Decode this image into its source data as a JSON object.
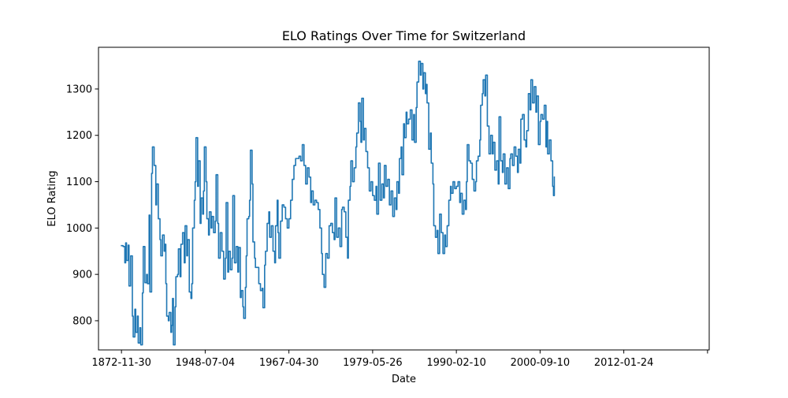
{
  "chart_data": {
    "type": "line",
    "title": "ELO Ratings Over Time for Switzerland",
    "xlabel": "Date",
    "ylabel": "ELO Rating",
    "x_tick_labels": [
      "1872-11-30",
      "1948-07-04",
      "1967-04-30",
      "1979-05-26",
      "1990-02-10",
      "2000-09-10",
      "2012-01-24",
      ""
    ],
    "y_ticks": [
      800,
      900,
      1000,
      1100,
      1200,
      1300
    ],
    "ylim": [
      737,
      1390
    ],
    "xlim": [
      -0.2744,
      7.02
    ],
    "x_encoding": "x values are the ordinal index of the matches; integers align with the printed tick labels",
    "grid": false,
    "legend": "none",
    "colors": {
      "series": "#1f77b4"
    },
    "series": [
      {
        "name": "",
        "points": [
          [
            0.0,
            962
          ],
          [
            0.02,
            960
          ],
          [
            0.04,
            925
          ],
          [
            0.05,
            968
          ],
          [
            0.06,
            930
          ],
          [
            0.08,
            963
          ],
          [
            0.09,
            875
          ],
          [
            0.11,
            940
          ],
          [
            0.13,
            810
          ],
          [
            0.14,
            765
          ],
          [
            0.16,
            825
          ],
          [
            0.17,
            775
          ],
          [
            0.19,
            810
          ],
          [
            0.2,
            752
          ],
          [
            0.22,
            785
          ],
          [
            0.23,
            748
          ],
          [
            0.25,
            860
          ],
          [
            0.26,
            960
          ],
          [
            0.28,
            882
          ],
          [
            0.3,
            900
          ],
          [
            0.31,
            880
          ],
          [
            0.33,
            1028
          ],
          [
            0.34,
            862
          ],
          [
            0.36,
            1118
          ],
          [
            0.37,
            1175
          ],
          [
            0.39,
            1135
          ],
          [
            0.41,
            1050
          ],
          [
            0.42,
            1095
          ],
          [
            0.44,
            1020
          ],
          [
            0.46,
            975
          ],
          [
            0.47,
            940
          ],
          [
            0.49,
            985
          ],
          [
            0.51,
            950
          ],
          [
            0.52,
            965
          ],
          [
            0.53,
            880
          ],
          [
            0.54,
            810
          ],
          [
            0.56,
            800
          ],
          [
            0.57,
            818
          ],
          [
            0.59,
            775
          ],
          [
            0.6,
            790
          ],
          [
            0.61,
            848
          ],
          [
            0.62,
            748
          ],
          [
            0.64,
            830
          ],
          [
            0.65,
            895
          ],
          [
            0.67,
            900
          ],
          [
            0.68,
            955
          ],
          [
            0.7,
            895
          ],
          [
            0.71,
            965
          ],
          [
            0.73,
            990
          ],
          [
            0.75,
            925
          ],
          [
            0.76,
            1005
          ],
          [
            0.78,
            940
          ],
          [
            0.79,
            975
          ],
          [
            0.81,
            862
          ],
          [
            0.83,
            848
          ],
          [
            0.84,
            880
          ],
          [
            0.85,
            1000
          ],
          [
            0.87,
            1060
          ],
          [
            0.88,
            1100
          ],
          [
            0.89,
            1195
          ],
          [
            0.91,
            1090
          ],
          [
            0.92,
            1145
          ],
          [
            0.94,
            1010
          ],
          [
            0.95,
            1065
          ],
          [
            0.97,
            1030
          ],
          [
            0.98,
            1080
          ],
          [
            0.99,
            1175
          ],
          [
            1.01,
            1100
          ],
          [
            1.02,
            1020
          ],
          [
            1.04,
            985
          ],
          [
            1.05,
            1035
          ],
          [
            1.07,
            1000
          ],
          [
            1.08,
            1025
          ],
          [
            1.1,
            990
          ],
          [
            1.12,
            1015
          ],
          [
            1.13,
            1115
          ],
          [
            1.15,
            1010
          ],
          [
            1.16,
            935
          ],
          [
            1.18,
            990
          ],
          [
            1.2,
            950
          ],
          [
            1.22,
            890
          ],
          [
            1.24,
            935
          ],
          [
            1.25,
            1055
          ],
          [
            1.27,
            905
          ],
          [
            1.28,
            950
          ],
          [
            1.3,
            910
          ],
          [
            1.32,
            935
          ],
          [
            1.33,
            1070
          ],
          [
            1.35,
            925
          ],
          [
            1.37,
            960
          ],
          [
            1.39,
            905
          ],
          [
            1.4,
            958
          ],
          [
            1.42,
            850
          ],
          [
            1.43,
            865
          ],
          [
            1.45,
            830
          ],
          [
            1.46,
            805
          ],
          [
            1.48,
            872
          ],
          [
            1.49,
            940
          ],
          [
            1.5,
            1020
          ],
          [
            1.52,
            1025
          ],
          [
            1.53,
            1060
          ],
          [
            1.54,
            1168
          ],
          [
            1.56,
            1095
          ],
          [
            1.57,
            970
          ],
          [
            1.59,
            935
          ],
          [
            1.6,
            915
          ],
          [
            1.62,
            915
          ],
          [
            1.64,
            880
          ],
          [
            1.66,
            865
          ],
          [
            1.68,
            870
          ],
          [
            1.69,
            828
          ],
          [
            1.71,
            920
          ],
          [
            1.72,
            950
          ],
          [
            1.74,
            1010
          ],
          [
            1.76,
            1035
          ],
          [
            1.77,
            980
          ],
          [
            1.79,
            1005
          ],
          [
            1.81,
            950
          ],
          [
            1.83,
            925
          ],
          [
            1.84,
            1005
          ],
          [
            1.86,
            1060
          ],
          [
            1.87,
            990
          ],
          [
            1.88,
            935
          ],
          [
            1.9,
            1015
          ],
          [
            1.92,
            1050
          ],
          [
            1.94,
            1045
          ],
          [
            1.96,
            1020
          ],
          [
            1.98,
            1000
          ],
          [
            2.0,
            1020
          ],
          [
            2.02,
            1060
          ],
          [
            2.04,
            1105
          ],
          [
            2.06,
            1135
          ],
          [
            2.08,
            1150
          ],
          [
            2.1,
            1150
          ],
          [
            2.12,
            1155
          ],
          [
            2.14,
            1145
          ],
          [
            2.16,
            1180
          ],
          [
            2.18,
            1135
          ],
          [
            2.2,
            1095
          ],
          [
            2.22,
            1130
          ],
          [
            2.24,
            1110
          ],
          [
            2.26,
            1055
          ],
          [
            2.27,
            1080
          ],
          [
            2.29,
            1050
          ],
          [
            2.31,
            1060
          ],
          [
            2.33,
            1055
          ],
          [
            2.35,
            1040
          ],
          [
            2.37,
            1000
          ],
          [
            2.39,
            945
          ],
          [
            2.4,
            900
          ],
          [
            2.42,
            872
          ],
          [
            2.44,
            945
          ],
          [
            2.46,
            935
          ],
          [
            2.48,
            1005
          ],
          [
            2.5,
            1010
          ],
          [
            2.52,
            990
          ],
          [
            2.54,
            975
          ],
          [
            2.55,
            1065
          ],
          [
            2.57,
            980
          ],
          [
            2.59,
            1000
          ],
          [
            2.61,
            960
          ],
          [
            2.63,
            1040
          ],
          [
            2.64,
            1045
          ],
          [
            2.66,
            1035
          ],
          [
            2.68,
            980
          ],
          [
            2.7,
            935
          ],
          [
            2.71,
            1060
          ],
          [
            2.73,
            1090
          ],
          [
            2.74,
            1145
          ],
          [
            2.76,
            1100
          ],
          [
            2.78,
            1130
          ],
          [
            2.8,
            1175
          ],
          [
            2.81,
            1205
          ],
          [
            2.83,
            1270
          ],
          [
            2.85,
            1230
          ],
          [
            2.86,
            1185
          ],
          [
            2.87,
            1280
          ],
          [
            2.89,
            1190
          ],
          [
            2.9,
            1215
          ],
          [
            2.92,
            1165
          ],
          [
            2.94,
            1130
          ],
          [
            2.96,
            1080
          ],
          [
            2.98,
            1100
          ],
          [
            3.0,
            1070
          ],
          [
            3.02,
            1060
          ],
          [
            3.04,
            1090
          ],
          [
            3.05,
            1030
          ],
          [
            3.07,
            1140
          ],
          [
            3.09,
            1060
          ],
          [
            3.11,
            1095
          ],
          [
            3.13,
            1065
          ],
          [
            3.14,
            1135
          ],
          [
            3.16,
            1090
          ],
          [
            3.18,
            1105
          ],
          [
            3.2,
            1050
          ],
          [
            3.22,
            1080
          ],
          [
            3.24,
            1025
          ],
          [
            3.26,
            1065
          ],
          [
            3.28,
            1040
          ],
          [
            3.29,
            1100
          ],
          [
            3.31,
            1075
          ],
          [
            3.32,
            1150
          ],
          [
            3.34,
            1175
          ],
          [
            3.35,
            1115
          ],
          [
            3.37,
            1225
          ],
          [
            3.38,
            1195
          ],
          [
            3.4,
            1250
          ],
          [
            3.41,
            1225
          ],
          [
            3.43,
            1235
          ],
          [
            3.45,
            1255
          ],
          [
            3.47,
            1190
          ],
          [
            3.49,
            1245
          ],
          [
            3.5,
            1185
          ],
          [
            3.52,
            1260
          ],
          [
            3.53,
            1315
          ],
          [
            3.55,
            1360
          ],
          [
            3.57,
            1330
          ],
          [
            3.58,
            1355
          ],
          [
            3.6,
            1300
          ],
          [
            3.61,
            1335
          ],
          [
            3.63,
            1290
          ],
          [
            3.64,
            1310
          ],
          [
            3.65,
            1270
          ],
          [
            3.67,
            1170
          ],
          [
            3.69,
            1205
          ],
          [
            3.7,
            1140
          ],
          [
            3.72,
            1095
          ],
          [
            3.73,
            1005
          ],
          [
            3.75,
            980
          ],
          [
            3.77,
            995
          ],
          [
            3.78,
            945
          ],
          [
            3.8,
            1030
          ],
          [
            3.82,
            990
          ],
          [
            3.84,
            945
          ],
          [
            3.86,
            985
          ],
          [
            3.87,
            960
          ],
          [
            3.89,
            1005
          ],
          [
            3.91,
            1060
          ],
          [
            3.93,
            1090
          ],
          [
            3.94,
            1075
          ],
          [
            3.96,
            1100
          ],
          [
            3.98,
            1085
          ],
          [
            4.0,
            1090
          ],
          [
            4.02,
            1100
          ],
          [
            4.04,
            1055
          ],
          [
            4.05,
            1075
          ],
          [
            4.07,
            1030
          ],
          [
            4.09,
            1060
          ],
          [
            4.11,
            1040
          ],
          [
            4.12,
            1100
          ],
          [
            4.13,
            1180
          ],
          [
            4.15,
            1145
          ],
          [
            4.17,
            1140
          ],
          [
            4.19,
            1105
          ],
          [
            4.21,
            1080
          ],
          [
            4.23,
            1100
          ],
          [
            4.24,
            1145
          ],
          [
            4.26,
            1155
          ],
          [
            4.28,
            1190
          ],
          [
            4.29,
            1265
          ],
          [
            4.31,
            1290
          ],
          [
            4.32,
            1320
          ],
          [
            4.34,
            1285
          ],
          [
            4.35,
            1330
          ],
          [
            4.37,
            1220
          ],
          [
            4.39,
            1160
          ],
          [
            4.41,
            1200
          ],
          [
            4.43,
            1160
          ],
          [
            4.44,
            1185
          ],
          [
            4.46,
            1125
          ],
          [
            4.48,
            1145
          ],
          [
            4.5,
            1095
          ],
          [
            4.51,
            1240
          ],
          [
            4.53,
            1145
          ],
          [
            4.55,
            1120
          ],
          [
            4.56,
            1160
          ],
          [
            4.58,
            1095
          ],
          [
            4.6,
            1130
          ],
          [
            4.62,
            1085
          ],
          [
            4.64,
            1150
          ],
          [
            4.65,
            1160
          ],
          [
            4.67,
            1135
          ],
          [
            4.69,
            1175
          ],
          [
            4.71,
            1155
          ],
          [
            4.73,
            1120
          ],
          [
            4.74,
            1170
          ],
          [
            4.76,
            1140
          ],
          [
            4.77,
            1235
          ],
          [
            4.79,
            1245
          ],
          [
            4.81,
            1190
          ],
          [
            4.83,
            1175
          ],
          [
            4.84,
            1210
          ],
          [
            4.86,
            1290
          ],
          [
            4.88,
            1255
          ],
          [
            4.89,
            1320
          ],
          [
            4.91,
            1270
          ],
          [
            4.93,
            1305
          ],
          [
            4.95,
            1250
          ],
          [
            4.96,
            1285
          ],
          [
            4.98,
            1180
          ],
          [
            5.0,
            1230
          ],
          [
            5.01,
            1245
          ],
          [
            5.03,
            1235
          ],
          [
            5.05,
            1265
          ],
          [
            5.07,
            1175
          ],
          [
            5.08,
            1230
          ],
          [
            5.09,
            1160
          ],
          [
            5.11,
            1190
          ],
          [
            5.13,
            1145
          ],
          [
            5.15,
            1090
          ],
          [
            5.16,
            1070
          ],
          [
            5.17,
            1110
          ]
        ]
      }
    ]
  }
}
